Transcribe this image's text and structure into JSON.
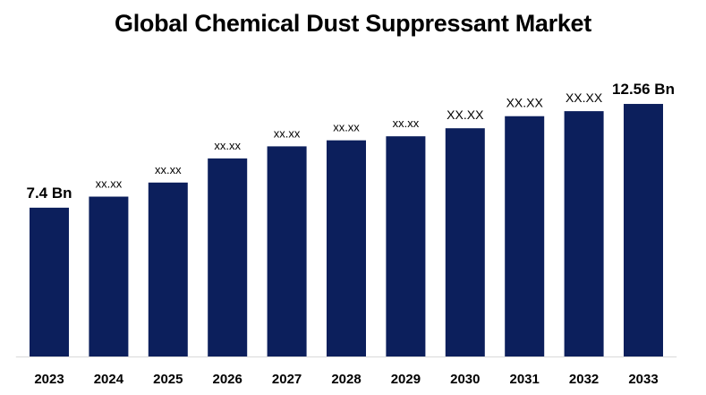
{
  "chart_data": {
    "type": "bar",
    "title": "Global Chemical Dust Suppressant Market",
    "categories": [
      "2023",
      "2024",
      "2025",
      "2026",
      "2027",
      "2028",
      "2029",
      "2030",
      "2031",
      "2032",
      "2033"
    ],
    "values": [
      7.4,
      7.95,
      8.65,
      9.85,
      10.45,
      10.75,
      10.95,
      11.35,
      11.95,
      12.2,
      12.56
    ],
    "data_labels": [
      "7.4 Bn",
      "xx.xx",
      "xx.xx",
      "xx.xx",
      "xx.xx",
      "xx.xx",
      "xx.xx",
      "XX.XX",
      "XX.XX",
      "XX.XX",
      "12.56 Bn"
    ],
    "xlabel": "",
    "ylabel": "",
    "grid": false,
    "bar_color": "#0c1f5c"
  }
}
